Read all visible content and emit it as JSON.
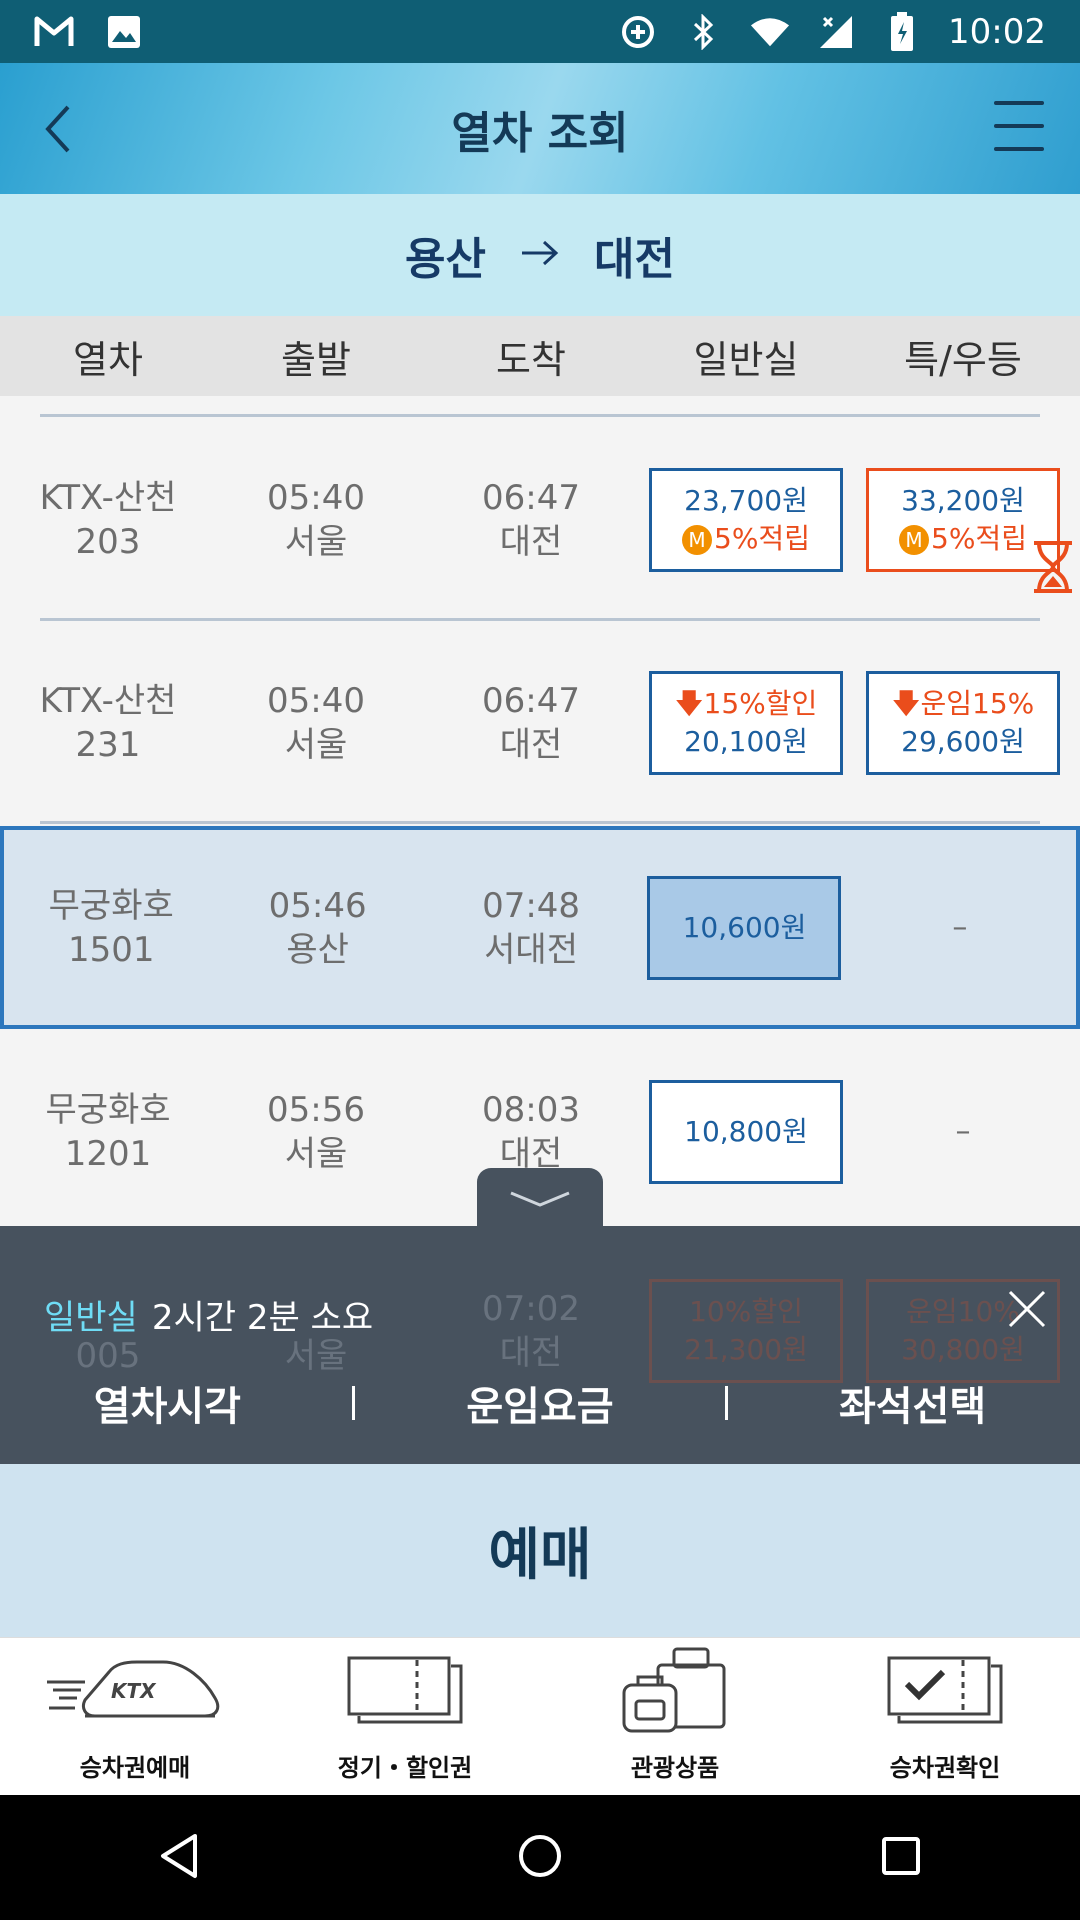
{
  "status_bar": {
    "time": "10:02",
    "left_icons": [
      "gmail-icon",
      "image-icon"
    ],
    "right_icons": [
      "data-saver-icon",
      "bluetooth-icon",
      "wifi-icon",
      "signal-icon",
      "battery-icon"
    ]
  },
  "header": {
    "title": "열차 조회"
  },
  "route": {
    "from": "용산",
    "to": "대전"
  },
  "columns": [
    "열차",
    "출발",
    "도착",
    "일반실",
    "특/우등"
  ],
  "rows": [
    {
      "train_name": "KTX-산천",
      "train_no": "203",
      "dep_time": "05:40",
      "dep_station": "서울",
      "arr_time": "06:47",
      "arr_station": "대전",
      "general": {
        "line1": "23,700원",
        "line2": "5%적립"
      },
      "special": {
        "line1": "33,200원",
        "line2": "5%적립"
      }
    },
    {
      "train_name": "KTX-산천",
      "train_no": "231",
      "dep_time": "05:40",
      "dep_station": "서울",
      "arr_time": "06:47",
      "arr_station": "대전",
      "general": {
        "line1": "15%할인",
        "line2": "20,100원"
      },
      "special": {
        "line1": "운임15%",
        "line2": "29,600원"
      }
    },
    {
      "train_name": "무궁화호",
      "train_no": "1501",
      "dep_time": "05:46",
      "dep_station": "용산",
      "arr_time": "07:48",
      "arr_station": "서대전",
      "general": {
        "line1": "10,600원"
      },
      "special": "–"
    },
    {
      "train_name": "무궁화호",
      "train_no": "1201",
      "dep_time": "05:56",
      "dep_station": "서울",
      "arr_time": "08:03",
      "arr_station": "대전",
      "general": {
        "line1": "10,800원"
      },
      "special": "–"
    },
    {
      "train_no": "005",
      "dep_station": "서울",
      "arr_time": "07:02",
      "arr_station": "대전",
      "general": {
        "line1": "10%할인",
        "line2": "21,300원"
      },
      "special": {
        "line1": "운임10%",
        "line2": "30,800원"
      }
    }
  ],
  "mpoint_mark": "M",
  "popup": {
    "class_label": "일반실",
    "duration": "2시간 2분 소요",
    "links": [
      "열차시각",
      "운임요금",
      "좌석선택"
    ]
  },
  "reserve_label": "예매",
  "bottom_nav": [
    {
      "label": "승차권예매",
      "icon": "ktx-train-icon"
    },
    {
      "label": "정기・할인권",
      "icon": "ticket-icon"
    },
    {
      "label": "관광상품",
      "icon": "luggage-icon"
    },
    {
      "label": "승차권확인",
      "icon": "ticket-check-icon"
    }
  ],
  "ktx_logo_text": "KTX",
  "colors": {
    "status_bar": "#0f5e74",
    "accent_blue": "#1c5e9e",
    "accent_orange": "#ea4d1c",
    "popup_bg": "#47525e",
    "reserve_bg": "#cfe3f0"
  }
}
